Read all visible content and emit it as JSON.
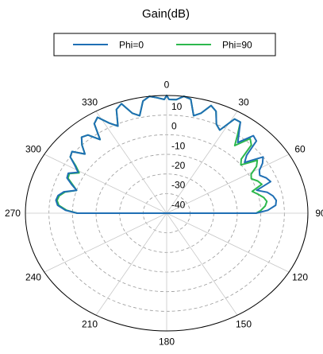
{
  "chart_data": {
    "type": "polar-line",
    "title": "Gain(dB)",
    "legend": {
      "placement": "top-center"
    },
    "angle_ticks": [
      "0",
      "30",
      "60",
      "90",
      "120",
      "150",
      "180",
      "210",
      "240",
      "270",
      "300",
      "330"
    ],
    "radial_ticks": [
      "10",
      "0",
      "-10",
      "-20",
      "-30",
      "-40"
    ],
    "radial_range": [
      -50,
      10
    ],
    "grid": true,
    "series": [
      {
        "name": "Phi=0",
        "color": "#1f6fb4",
        "theta": [
          -90,
          -88,
          -85,
          -82,
          -79,
          -76,
          -73,
          -70,
          -67,
          -64,
          -61,
          -58,
          -55,
          -52,
          -49,
          -46,
          -43,
          -40,
          -37,
          -34,
          -31,
          -28,
          -25,
          -22,
          -19,
          -16,
          -13,
          -10,
          -7,
          -4,
          -1,
          0,
          1,
          4,
          7,
          10,
          13,
          16,
          19,
          22,
          25,
          28,
          31,
          34,
          37,
          40,
          43,
          46,
          49,
          52,
          55,
          58,
          61,
          64,
          67,
          70,
          73,
          76,
          79,
          82,
          85,
          88,
          90
        ],
        "gain": [
          -12,
          -7,
          -3.5,
          -2.5,
          -3,
          -5,
          -10,
          -7,
          -4,
          -3.5,
          -7,
          -4,
          0,
          1,
          -4,
          0,
          3,
          2,
          -3,
          5,
          7,
          2,
          -1,
          7,
          9,
          3,
          1,
          8,
          11,
          9,
          8,
          10,
          8,
          8,
          12,
          9,
          1,
          3,
          8,
          6,
          0,
          -2,
          6,
          6,
          1,
          -3,
          4,
          3,
          -5,
          -8,
          0,
          -2,
          -5,
          -6,
          -4,
          -3,
          -10,
          -6,
          -4,
          -3,
          -3.5,
          -7,
          -12
        ]
      },
      {
        "name": "Phi=90",
        "color": "#2db84d",
        "theta": [
          -90,
          -88,
          -85,
          -82,
          -79,
          -76,
          -73,
          -70,
          -67,
          -64,
          -61,
          -58,
          -55,
          -52,
          -49,
          -46,
          -43,
          -40,
          -37,
          -34,
          -31,
          -28,
          -25,
          -22,
          -19,
          -16,
          -13,
          -10,
          -7,
          -4,
          -1,
          0,
          1,
          4,
          7,
          10,
          13,
          16,
          19,
          22,
          25,
          28,
          31,
          34,
          37,
          40,
          43,
          46,
          49,
          52,
          55,
          58,
          61,
          64,
          67,
          70,
          73,
          76,
          79,
          82,
          85,
          88,
          90
        ],
        "gain": [
          -12,
          -7.5,
          -4,
          -3,
          -3.5,
          -5.5,
          -10,
          -7.5,
          -4.5,
          -4,
          -7.5,
          -4.5,
          0,
          1,
          -4,
          0,
          3,
          2,
          -3,
          5,
          7,
          2,
          -1,
          7,
          9,
          3,
          1,
          8,
          11,
          9,
          8,
          10,
          8,
          8,
          12,
          9,
          1,
          3,
          8,
          6,
          0,
          -2,
          6,
          6,
          0,
          -5,
          2,
          0,
          -8,
          -10,
          -3,
          -5,
          -9,
          -10,
          -8,
          -7,
          -12,
          -10,
          -8,
          -7,
          -8,
          -10,
          -12
        ]
      }
    ]
  }
}
